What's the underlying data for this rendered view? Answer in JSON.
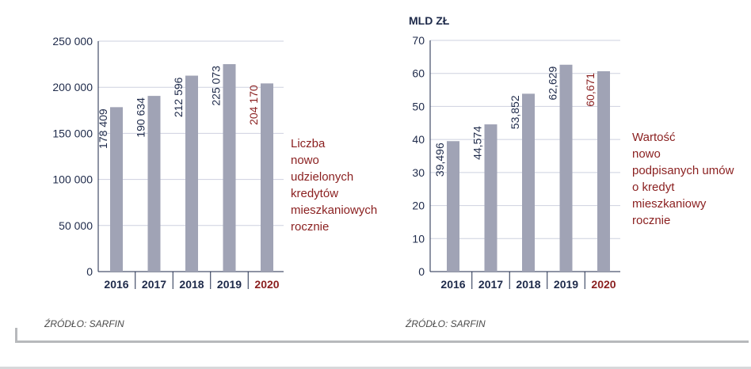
{
  "colors": {
    "bar": "#a0a3b5",
    "highlight": "#8a1f1f",
    "text": "#1e2a4a",
    "grid": "#ced1df"
  },
  "chart_data": [
    {
      "type": "bar",
      "categories": [
        "2016",
        "2017",
        "2018",
        "2019",
        "2020"
      ],
      "values": [
        178409,
        190634,
        212596,
        225073,
        204170
      ],
      "value_labels": [
        "178 409",
        "190 634",
        "212 596",
        "225 073",
        "204 170"
      ],
      "ylim": [
        0,
        250000
      ],
      "yticks": [
        0,
        50000,
        100000,
        150000,
        200000,
        250000
      ],
      "ytick_labels": [
        "0",
        "50 000",
        "100 000",
        "150 000",
        "200 000",
        "250 000"
      ],
      "highlight_index": 4,
      "grid": true,
      "side_label": [
        "Liczba",
        "nowo",
        "udzielonych",
        "kredytów",
        "mieszkaniowych",
        "rocznie"
      ]
    },
    {
      "type": "bar",
      "categories": [
        "2016",
        "2017",
        "2018",
        "2019",
        "2020"
      ],
      "values": [
        39.496,
        44.574,
        53.852,
        62.629,
        60.671
      ],
      "value_labels": [
        "39,496",
        "44,574",
        "53,852",
        "62,629",
        "60,671"
      ],
      "ylim": [
        0,
        70
      ],
      "yticks": [
        0,
        10,
        20,
        30,
        40,
        50,
        60,
        70
      ],
      "ytick_labels": [
        "0",
        "10",
        "20",
        "30",
        "40",
        "50",
        "60",
        "70"
      ],
      "ylabel": "MLD ZŁ",
      "highlight_index": 4,
      "grid": true,
      "side_label": [
        "Wartość",
        "nowo",
        "podpisanych umów",
        "o kredyt",
        "mieszkaniowy",
        "rocznie"
      ]
    }
  ],
  "sources": {
    "left": "ŹRÓDŁO: SARFIN",
    "right": "ŹRÓDŁO: SARFIN"
  }
}
